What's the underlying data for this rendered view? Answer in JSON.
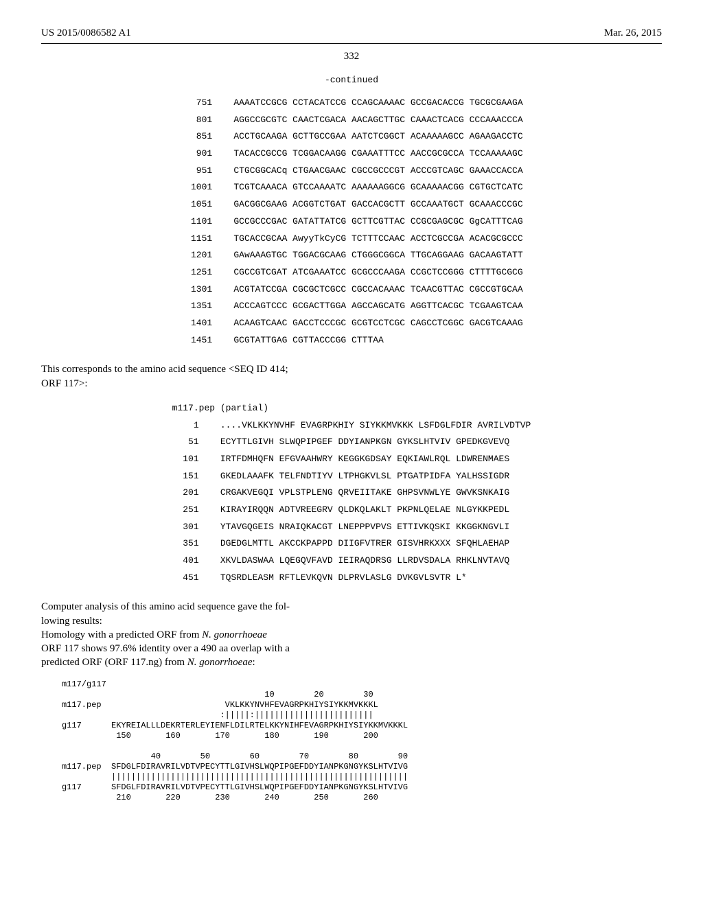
{
  "header": {
    "left": "US 2015/0086582 A1",
    "right": "Mar. 26, 2015"
  },
  "page_number": "332",
  "continued_label": "-continued",
  "dna_block": {
    "font_family": "Courier New",
    "font_size_pt": 10,
    "rows": [
      {
        "pos": "751",
        "seq": "AAAATCCGCG CCTACATCCG CCAGCAAAAC GCCGACACCG TGCGCGAAGA"
      },
      {
        "pos": "801",
        "seq": "AGGCCGCGTC CAACTCGACA AACAGCTTGC CAAACTCACG CCCAAACCCA"
      },
      {
        "pos": "851",
        "seq": "ACCTGCAAGA GCTTGCCGAA AATCTCGGCT ACAAAAAGCC AGAAGACCTC"
      },
      {
        "pos": "901",
        "seq": "TACACCGCCG TCGGACAAGG CGAAATTTCC AACCGCGCCA TCCAAAAAGC"
      },
      {
        "pos": "951",
        "seq": "CTGCGGCACq CTGAACGAAC CGCCGCCCGT ACCCGTCAGC GAAACCACCA"
      },
      {
        "pos": "1001",
        "seq": "TCGTCAAACA GTCCAAAATC AAAAAAGGCG GCAAAAACGG CGTGCTCATC"
      },
      {
        "pos": "1051",
        "seq": "GACGGCGAAG ACGGTCTGAT GACCACGCTT GCCAAATGCT GCAAACCCGC"
      },
      {
        "pos": "1101",
        "seq": "GCCGCCCGAC GATATTATCG GCTTCGTTAC CCGCGAGCGC GgCATTTCAG"
      },
      {
        "pos": "1151",
        "seq": "TGCACCGCAA AwyyTkCyCG TCTTTCCAAC ACCTCGCCGA ACACGCGCCC"
      },
      {
        "pos": "1201",
        "seq": "GAwAAAGTGC TGGACGCAAG CTGGGCGGCA TTGCAGGAAG GACAAGTATT"
      },
      {
        "pos": "1251",
        "seq": "CGCCGTCGAT ATCGAAATCC GCGCCCAAGA CCGCTCCGGG CTTTTGCGCG"
      },
      {
        "pos": "1301",
        "seq": "ACGTATCCGA CGCGCTCGCC CGCCACAAAC TCAACGTTAC CGCCGTGCAA"
      },
      {
        "pos": "1351",
        "seq": "ACCCAGTCCC GCGACTTGGA AGCCAGCATG AGGTTCACGC TCGAAGTCAA"
      },
      {
        "pos": "1401",
        "seq": "ACAAGTCAAC GACCTCCCGC GCGTCCTCGC CAGCCTCGGC GACGTCAAAG"
      },
      {
        "pos": "1451",
        "seq": "GCGTATTGAG CGTTACCCGG CTTTAA"
      }
    ]
  },
  "note1": {
    "line1": "This corresponds to the amino acid sequence <SEQ ID 414;",
    "line2": "ORF 117>:"
  },
  "aa_block": {
    "title": "m117.pep (partial)",
    "font_family": "Courier New",
    "font_size_pt": 10,
    "rows": [
      {
        "pos": "1",
        "seq": "....VKLKKYNVHF EVAGRPKHIY SIYKKMVKKK LSFDGLFDIR AVRILVDTVP"
      },
      {
        "pos": "51",
        "seq": "ECYTTLGIVH SLWQPIPGEF DDYIANPKGN GYKSLHTVIV GPEDKGVEVQ"
      },
      {
        "pos": "101",
        "seq": "IRTFDMHQFN EFGVAAHWRY KEGGKGDSAY EQKIAWLRQL LDWRENMAES"
      },
      {
        "pos": "151",
        "seq": "GKEDLAAAFK TELFNDTIYV LTPHGKVLSL PTGATPIDFA YALHSSIGDR"
      },
      {
        "pos": "201",
        "seq": "CRGAKVEGQI VPLSTPLENG QRVEIITAKE GHPSVNWLYE GWVKSNKAIG"
      },
      {
        "pos": "251",
        "seq": "KIRAYIRQQN ADTVREEGRV QLDKQLAKLT PKPNLQELAE NLGYKKPEDL"
      },
      {
        "pos": "301",
        "seq": "YTAVGQGEIS NRAIQKACGT LNEPPPVPVS ETTIVKQSKI KKGGKNGVLI"
      },
      {
        "pos": "351",
        "seq": "DGEDGLMTTL AKCCKPAPPD DIIGFVTRER GISVHRKXXX SFQHLAEHAP"
      },
      {
        "pos": "401",
        "seq": "XKVLDASWAA LQEGQVFAVD IEIRAQDRSG LLRDVSDALA RHKLNVTAVQ"
      },
      {
        "pos": "451",
        "seq": "TQSRDLEASM RFTLEVKQVN DLPRVLASLG DVKGVLSVTR L*"
      }
    ]
  },
  "note2": {
    "l1": "Computer analysis of this amino acid sequence gave the fol-",
    "l2": "lowing results:",
    "l3a": "Homology with a predicted ORF from ",
    "l3b": "N. gonorrhoeae",
    "l4": "ORF 117 shows 97.6% identity over a 490 aa overlap with a",
    "l5a": "predicted ORF (ORF 117.ng) from ",
    "l5b": "N. gonorrhoeae",
    "l5c": ":"
  },
  "alignment": {
    "font_family": "Courier New",
    "font_size_pt": 9,
    "lines": [
      "m117/g117",
      "                                         10        20        30",
      "m117.pep                         VKLKKYNVHFEVAGRPKHIYSIYKKMVKKKL",
      "                                :|||||:||||||||||||||||||||||||",
      "g117      EKYREIALLLDEKRTERLEYIENFLDILRTELKKYNIHFEVAGRPKHIYSIYKKMVKKKL",
      "           150       160       170       180       190       200",
      "",
      "                  40        50        60        70        80        90",
      "m117.pep  SFDGLFDIRAVRILVDTVPECYTTLGIVHSLWQPIPGEFDDYIANPKGNGYKSLHTVIVG",
      "          ||||||||||||||||||||||||||||||||||||||||||||||||||||||||||||",
      "g117      SFDGLFDIRAVRILVDTVPECYTTLGIVHSLWQPIPGEFDDYIANPKGNGYKSLHTVIVG",
      "           210       220       230       240       250       260"
    ]
  }
}
